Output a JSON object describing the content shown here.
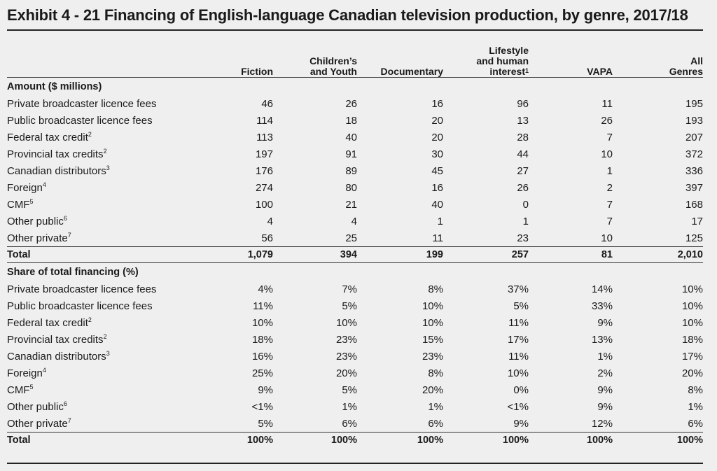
{
  "title": "Exhibit 4 - 21 Financing of English-language Canadian television production, by genre, 2017/18",
  "columns": [
    "Fiction",
    "Children’s\nand Youth",
    "Documentary",
    "Lifestyle\nand human\ninterest",
    "VAPA",
    "All\nGenres"
  ],
  "column_sups": [
    "",
    "",
    "",
    "1",
    "",
    ""
  ],
  "sections": [
    {
      "heading": "Amount ($ millions)",
      "rows": [
        {
          "label": "Private broadcaster licence fees",
          "sup": "",
          "values": [
            "46",
            "26",
            "16",
            "96",
            "11",
            "195"
          ]
        },
        {
          "label": "Public broadcaster licence fees",
          "sup": "",
          "values": [
            "114",
            "18",
            "20",
            "13",
            "26",
            "193"
          ]
        },
        {
          "label": "Federal tax credit",
          "sup": "2",
          "values": [
            "113",
            "40",
            "20",
            "28",
            "7",
            "207"
          ]
        },
        {
          "label": "Provincial tax credits",
          "sup": "2",
          "values": [
            "197",
            "91",
            "30",
            "44",
            "10",
            "372"
          ]
        },
        {
          "label": "Canadian distributors",
          "sup": "3",
          "values": [
            "176",
            "89",
            "45",
            "27",
            "1",
            "336"
          ]
        },
        {
          "label": "Foreign",
          "sup": "4",
          "values": [
            "274",
            "80",
            "16",
            "26",
            "2",
            "397"
          ]
        },
        {
          "label": "CMF",
          "sup": "5",
          "values": [
            "100",
            "21",
            "40",
            "0",
            "7",
            "168"
          ]
        },
        {
          "label": "Other public",
          "sup": "6",
          "values": [
            "4",
            "4",
            "1",
            "1",
            "7",
            "17"
          ]
        },
        {
          "label": "Other private",
          "sup": "7",
          "values": [
            "56",
            "25",
            "11",
            "23",
            "10",
            "125"
          ]
        }
      ],
      "total": {
        "label": "Total",
        "values": [
          "1,079",
          "394",
          "199",
          "257",
          "81",
          "2,010"
        ]
      }
    },
    {
      "heading": "Share of total financing (%)",
      "rows": [
        {
          "label": "Private broadcaster licence fees",
          "sup": "",
          "values": [
            "4%",
            "7%",
            "8%",
            "37%",
            "14%",
            "10%"
          ]
        },
        {
          "label": "Public broadcaster licence fees",
          "sup": "",
          "values": [
            "11%",
            "5%",
            "10%",
            "5%",
            "33%",
            "10%"
          ]
        },
        {
          "label": "Federal tax credit",
          "sup": "2",
          "values": [
            "10%",
            "10%",
            "10%",
            "11%",
            "9%",
            "10%"
          ]
        },
        {
          "label": "Provincial tax credits",
          "sup": "2",
          "values": [
            "18%",
            "23%",
            "15%",
            "17%",
            "13%",
            "18%"
          ]
        },
        {
          "label": "Canadian distributors",
          "sup": "3",
          "values": [
            "16%",
            "23%",
            "23%",
            "11%",
            "1%",
            "17%"
          ]
        },
        {
          "label": "Foreign",
          "sup": "4",
          "values": [
            "25%",
            "20%",
            "8%",
            "10%",
            "2%",
            "20%"
          ]
        },
        {
          "label": "CMF",
          "sup": "5",
          "values": [
            "9%",
            "5%",
            "20%",
            "0%",
            "9%",
            "8%"
          ]
        },
        {
          "label": "Other public",
          "sup": "6",
          "values": [
            "<1%",
            "1%",
            "1%",
            "<1%",
            "9%",
            "1%"
          ]
        },
        {
          "label": "Other private",
          "sup": "7",
          "values": [
            "5%",
            "6%",
            "6%",
            "9%",
            "12%",
            "6%"
          ]
        }
      ],
      "total": {
        "label": "Total",
        "values": [
          "100%",
          "100%",
          "100%",
          "100%",
          "100%",
          "100%"
        ]
      }
    }
  ]
}
